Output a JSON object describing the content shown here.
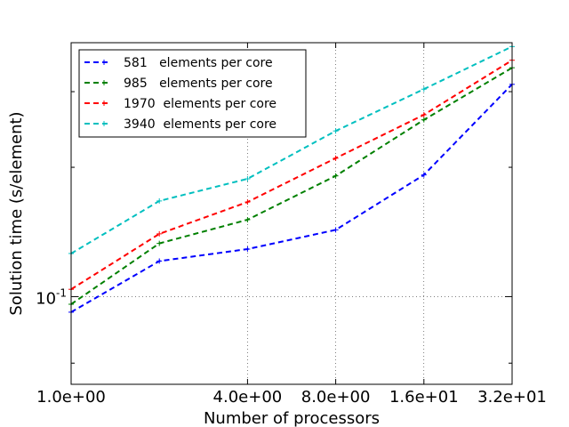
{
  "chart_data": {
    "type": "line",
    "xlabel": "Number of processors",
    "ylabel": "Solution time (s/element)",
    "x_scale": "log2",
    "y_scale": "log10",
    "xlim": [
      1,
      32
    ],
    "ylim": [
      0.0625,
      0.39
    ],
    "x_ticks": [
      {
        "value": 1,
        "label": "1.0e+00"
      },
      {
        "value": 4,
        "label": "4.0e+00"
      },
      {
        "value": 8,
        "label": "8.0e+00"
      },
      {
        "value": 16,
        "label": "1.6e+01"
      },
      {
        "value": 32,
        "label": "3.2e+01"
      }
    ],
    "y_major_ticks": [
      {
        "value": 0.1,
        "base": "10",
        "exponent": "-1"
      }
    ],
    "y_minor_ticks": [
      0.07,
      0.2,
      0.3
    ],
    "grid": true,
    "legend_position": "top-left",
    "x": [
      1,
      2,
      4,
      8,
      16,
      32
    ],
    "series": [
      {
        "name": "581   elements per core",
        "color": "#0000ff",
        "values": [
          0.092,
          0.121,
          0.129,
          0.143,
          0.192,
          0.312
        ]
      },
      {
        "name": "985   elements per core",
        "color": "#008000",
        "values": [
          0.096,
          0.133,
          0.151,
          0.191,
          0.258,
          0.341
        ]
      },
      {
        "name": "1970  elements per core",
        "color": "#ff0000",
        "values": [
          0.104,
          0.14,
          0.166,
          0.21,
          0.265,
          0.355
        ]
      },
      {
        "name": "3940  elements per core",
        "color": "#00bfbf",
        "values": [
          0.126,
          0.167,
          0.188,
          0.243,
          0.304,
          0.382
        ]
      }
    ]
  }
}
